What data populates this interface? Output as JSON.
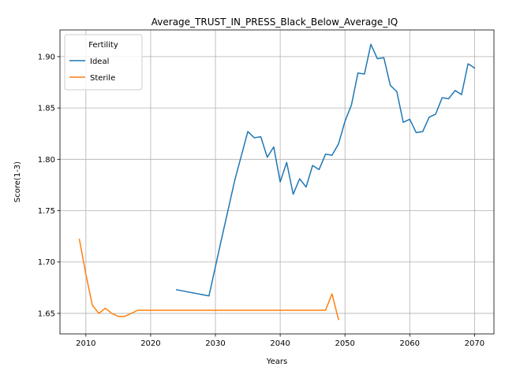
{
  "chart_data": {
    "type": "line",
    "title": "Average_TRUST_IN_PRESS_Black_Below_Average_IQ",
    "xlabel": "Years",
    "ylabel": "Score(1-3)",
    "xlim": [
      2006,
      2073
    ],
    "ylim": [
      1.63,
      1.926
    ],
    "xticks": [
      2010,
      2020,
      2030,
      2040,
      2050,
      2060,
      2070
    ],
    "yticks": [
      1.65,
      1.7,
      1.75,
      1.8,
      1.85,
      1.9
    ],
    "ytick_labels": [
      "1.65",
      "1.70",
      "1.75",
      "1.80",
      "1.85",
      "1.90"
    ],
    "grid": true,
    "legend": {
      "title": "Fertility",
      "placement": "top-left",
      "entries": [
        "Ideal",
        "Sterile"
      ]
    },
    "series": [
      {
        "name": "Ideal",
        "color": "#1f77b4",
        "x": [
          2024,
          2029,
          2031,
          2033,
          2035,
          2036,
          2037,
          2038,
          2039,
          2040,
          2041,
          2042,
          2043,
          2044,
          2045,
          2046,
          2047,
          2048,
          2049,
          2050,
          2051,
          2052,
          2053,
          2054,
          2055,
          2056,
          2057,
          2058,
          2059,
          2060,
          2061,
          2062,
          2063,
          2064,
          2065,
          2066,
          2067,
          2068,
          2069,
          2070
        ],
        "y": [
          1.673,
          1.667,
          1.724,
          1.78,
          1.827,
          1.821,
          1.822,
          1.802,
          1.812,
          1.778,
          1.797,
          1.766,
          1.781,
          1.773,
          1.794,
          1.79,
          1.805,
          1.804,
          1.815,
          1.837,
          1.853,
          1.884,
          1.883,
          1.912,
          1.898,
          1.899,
          1.872,
          1.866,
          1.836,
          1.839,
          1.826,
          1.827,
          1.841,
          1.844,
          1.86,
          1.859,
          1.867,
          1.863,
          1.893,
          1.889
        ]
      },
      {
        "name": "Sterile",
        "color": "#ff7f0e",
        "x": [
          2009,
          2010,
          2011,
          2012,
          2013,
          2014,
          2015,
          2016,
          2017,
          2018,
          2020,
          2030,
          2040,
          2047,
          2048,
          2049
        ],
        "y": [
          1.722,
          1.688,
          1.658,
          1.65,
          1.655,
          1.65,
          1.647,
          1.647,
          1.65,
          1.653,
          1.653,
          1.653,
          1.653,
          1.653,
          1.669,
          1.644
        ]
      }
    ]
  }
}
